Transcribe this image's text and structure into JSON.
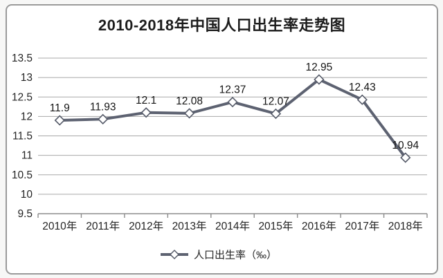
{
  "chart_data": {
    "type": "line",
    "title": "2010-2018年中国人口出生率走势图",
    "categories": [
      "2010年",
      "2011年",
      "2012年",
      "2013年",
      "2014年",
      "2015年",
      "2016年",
      "2017年",
      "2018年"
    ],
    "series": [
      {
        "name": "人口出生率（‰）",
        "values": [
          11.9,
          11.93,
          12.1,
          12.08,
          12.37,
          12.07,
          12.95,
          12.43,
          10.94
        ]
      }
    ],
    "data_labels": [
      "11.9",
      "11.93",
      "12.1",
      "12.08",
      "12.37",
      "12.07",
      "12.95",
      "12.43",
      "10.94"
    ],
    "xlabel": "",
    "ylabel": "",
    "ylim": [
      9.5,
      13.5
    ],
    "ytick_step": 0.5,
    "ytick_labels": [
      "9.5",
      "10",
      "10.5",
      "11",
      "11.5",
      "12",
      "12.5",
      "13",
      "13.5"
    ],
    "grid": "horizontal",
    "legend_position": "bottom",
    "legend_label": "人口出生率（‰）",
    "marker": "diamond",
    "colors": {
      "line": "#5d6271",
      "marker_fill": "#ffffff",
      "marker_stroke": "#565b69",
      "grid": "#a8a8a8",
      "axis": "#8b8b8b",
      "text": "#242424",
      "data_label": "#141414",
      "card_border": "#9a9a9a",
      "card_background": "#ffffff"
    }
  }
}
